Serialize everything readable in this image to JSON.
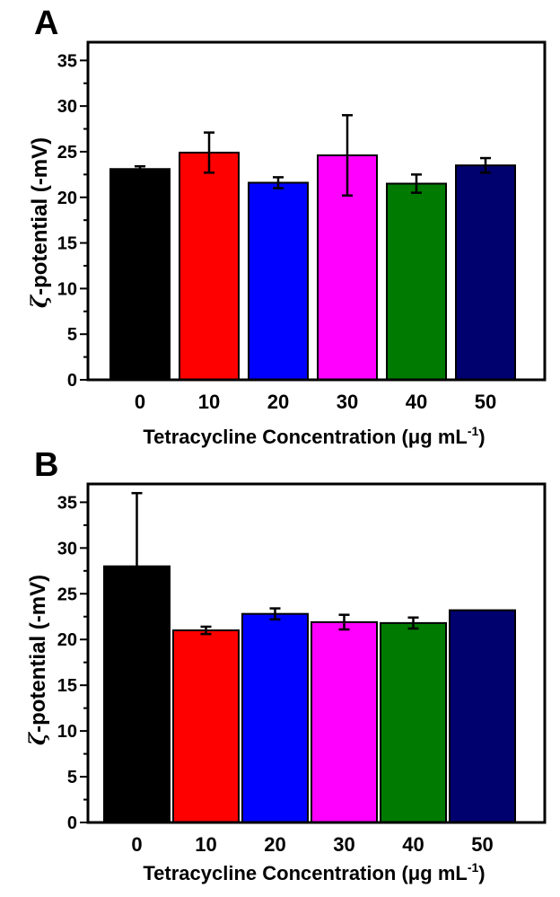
{
  "chart_data": [
    {
      "type": "bar",
      "panel_label": "A",
      "categories": [
        "0",
        "10",
        "20",
        "30",
        "40",
        "50"
      ],
      "values": [
        23.1,
        24.9,
        21.6,
        24.6,
        21.5,
        23.5
      ],
      "errors": [
        0.3,
        2.2,
        0.6,
        4.4,
        1.0,
        0.8
      ],
      "colors": [
        "#000000",
        "#ff0000",
        "#0000ff",
        "#ff00ff",
        "#007a00",
        "#00006e"
      ],
      "ylabel_symbol": "ζ",
      "ylabel": "-potential (-mV)",
      "xlabel": "Tetracycline Concentration (μg mL",
      "xlabel_sup": "-1",
      "xlabel_close": ")",
      "ylim": [
        0,
        37
      ],
      "yticks": [
        "0",
        "5",
        "10",
        "15",
        "20",
        "25",
        "30",
        "35"
      ]
    },
    {
      "type": "bar",
      "panel_label": "B",
      "categories": [
        "0",
        "10",
        "20",
        "30",
        "40",
        "50"
      ],
      "values": [
        28.0,
        21.0,
        22.8,
        21.9,
        21.8,
        23.2
      ],
      "errors": [
        8.0,
        0.4,
        0.6,
        0.8,
        0.6,
        0.0
      ],
      "colors": [
        "#000000",
        "#ff0000",
        "#0000ff",
        "#ff00ff",
        "#007a00",
        "#00006e"
      ],
      "ylabel_symbol": "ζ",
      "ylabel": "-potential (-mV)",
      "xlabel": "Tetracycline Concentration (μg mL",
      "xlabel_sup": "-1",
      "xlabel_close": ")",
      "ylim": [
        0,
        37
      ],
      "yticks": [
        "0",
        "5",
        "10",
        "15",
        "20",
        "25",
        "30",
        "35"
      ]
    }
  ]
}
